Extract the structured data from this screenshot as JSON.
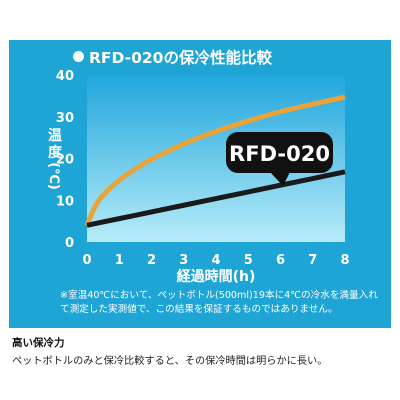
{
  "title": "RFD-020の保冷性能比較",
  "colors": {
    "panel_bg": "#1fa4d6",
    "plot_bg_top": "#21a6dd",
    "plot_bg_bottom": "#b7ecf8",
    "pet_bottle_line": "#e8a33a",
    "rfd_line": "#1a1a1a",
    "callout_bg": "#111111",
    "text_light": "#ffffff"
  },
  "chart_data": {
    "type": "line",
    "title": "RFD-020の保冷性能比較",
    "xlabel": "経過時間(h)",
    "ylabel": "温度(℃)",
    "x_ticks": [
      "0",
      "1",
      "2",
      "3",
      "4",
      "5",
      "6",
      "7",
      "8"
    ],
    "y_ticks": [
      "0",
      "10",
      "20",
      "30",
      "40"
    ],
    "xlim": [
      0,
      8
    ],
    "ylim": [
      0,
      40
    ],
    "grid": false,
    "series": [
      {
        "name": "",
        "color": "#e8a33a",
        "x": [
          0,
          0.25,
          0.5,
          1,
          1.5,
          2,
          3,
          4,
          5,
          6,
          7,
          8
        ],
        "y": [
          4,
          8.5,
          11.2,
          14.8,
          17.5,
          19.8,
          23.5,
          26.5,
          29,
          31.2,
          33,
          34.7
        ]
      },
      {
        "name": "RFD-020",
        "color": "#1a1a1a",
        "x": [
          0,
          1,
          2,
          3,
          4,
          5,
          6,
          7,
          8
        ],
        "y": [
          4,
          5.6,
          7.2,
          8.8,
          10.4,
          12,
          13.6,
          15.2,
          16.8
        ]
      }
    ],
    "annotations": [
      {
        "text": "RFD-020",
        "series": "RFD-020"
      }
    ]
  },
  "note": "※室温40℃において、ペットボトル(500ml)19本に4℃の冷水を満量入れて測定した実測値で、この結果を保証するものではありません。",
  "description": {
    "heading": "高い保冷力",
    "body": "ペットボトルのみと保冷比較すると、その保冷時間は明らかに長い。"
  }
}
